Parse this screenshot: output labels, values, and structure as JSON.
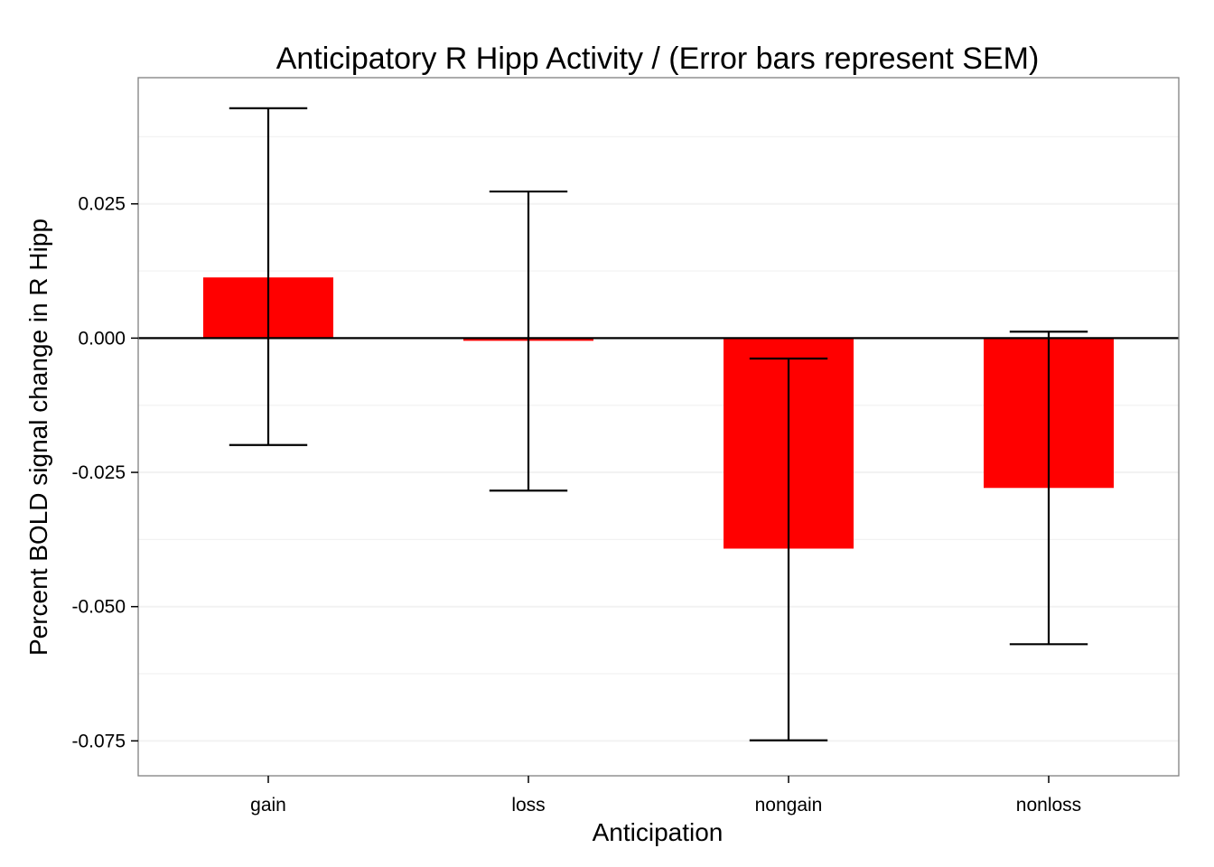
{
  "chart_data": {
    "type": "bar",
    "title": "Anticipatory R Hipp Activity / (Error bars represent SEM)",
    "xlabel": "Anticipation",
    "ylabel": "Percent BOLD signal change in R Hipp",
    "categories": [
      "gain",
      "loss",
      "nongain",
      "nonloss"
    ],
    "series": [
      {
        "values": [
          0.0113,
          -0.0005,
          -0.0392,
          -0.0279
        ],
        "error_lower": [
          -0.0199,
          -0.0284,
          -0.0749,
          -0.057
        ],
        "error_upper": [
          0.0428,
          0.0273,
          -0.0038,
          0.0012
        ]
      }
    ],
    "ylim": [
      -0.0815,
      0.0485
    ],
    "yticks": [
      0.025,
      0.0,
      -0.025,
      -0.05,
      -0.075
    ],
    "ytick_labels": [
      "0.025",
      "0.000",
      "-0.025",
      "-0.050",
      "-0.075"
    ],
    "hline": 0,
    "grid": true,
    "legend": "none",
    "bar_color": "#ff0000",
    "panel_border_color": "#7f7f7f",
    "gridline_color": "#f2f2f2"
  }
}
